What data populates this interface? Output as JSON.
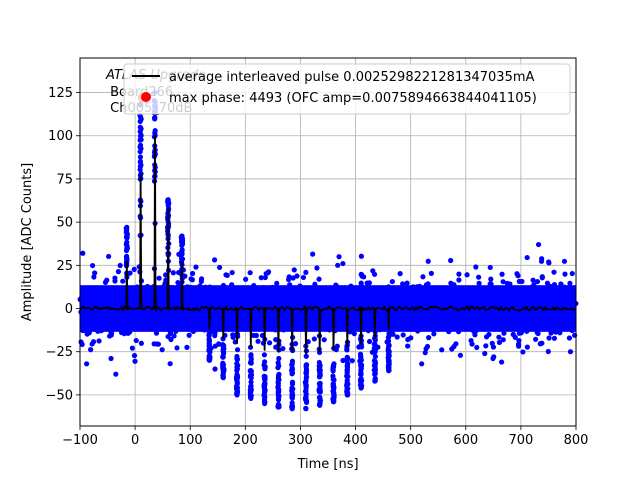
{
  "chart_data": {
    "type": "scatter",
    "xlabel": "Time [ns]",
    "ylabel": "Amplitude [ADC Counts]",
    "xlim": [
      -100,
      800
    ],
    "ylim": [
      -68,
      145
    ],
    "xticks": [
      -100,
      0,
      100,
      200,
      300,
      400,
      500,
      600,
      700,
      800
    ],
    "yticks": [
      -50,
      -25,
      0,
      25,
      50,
      75,
      100,
      125
    ],
    "grid": true,
    "legend_position": "upper-right",
    "annotation_lines": [
      "ATLAS Upgrade",
      " Board266",
      " Ch005_70dB"
    ],
    "series": [
      {
        "name": "average interleaved pulse 0.0025298221281347035mA",
        "kind": "line",
        "color": "#000000",
        "positive_pulses": [
          [
            -15,
            27
          ],
          [
            10,
            78
          ],
          [
            36,
            100
          ],
          [
            60,
            58
          ],
          [
            85,
            27
          ]
        ],
        "negative_pulses": [
          [
            135,
            -12
          ],
          [
            160,
            -17
          ],
          [
            185,
            -20
          ],
          [
            210,
            -22
          ],
          [
            235,
            -24
          ],
          [
            260,
            -25
          ],
          [
            285,
            -25
          ],
          [
            310,
            -26
          ],
          [
            335,
            -25
          ],
          [
            360,
            -24
          ],
          [
            385,
            -22
          ],
          [
            410,
            -20
          ],
          [
            435,
            -17
          ],
          [
            460,
            -12
          ]
        ]
      },
      {
        "name": "max phase: 4493 (OFC amp=0.0075894663844041105)",
        "kind": "marker",
        "color": "#ff0000",
        "x": 14,
        "y": 122
      },
      {
        "name": "",
        "kind": "scatter-cloud",
        "color": "#0000ff",
        "noise_band": [
          -18,
          18
        ],
        "positive_peaks": [
          [
            -15,
            47
          ],
          [
            10,
            118
          ],
          [
            36,
            125
          ],
          [
            60,
            63
          ],
          [
            85,
            42
          ]
        ],
        "negative_peaks": [
          [
            135,
            -30
          ],
          [
            160,
            -40
          ],
          [
            185,
            -50
          ],
          [
            210,
            -52
          ],
          [
            235,
            -55
          ],
          [
            260,
            -57
          ],
          [
            285,
            -58
          ],
          [
            310,
            -58
          ],
          [
            335,
            -56
          ],
          [
            360,
            -54
          ],
          [
            385,
            -50
          ],
          [
            410,
            -46
          ],
          [
            435,
            -42
          ],
          [
            460,
            -36
          ]
        ]
      }
    ]
  }
}
